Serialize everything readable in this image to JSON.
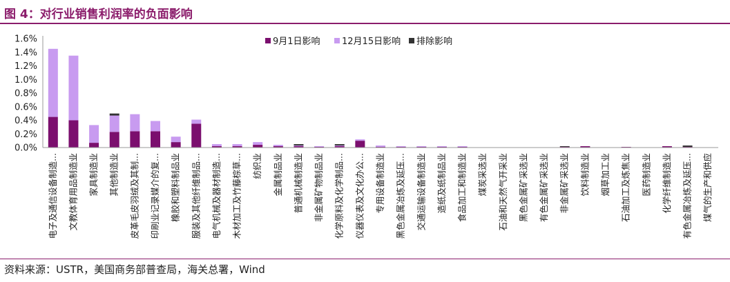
{
  "header": {
    "title": "图 4：对行业销售利润率的负面影响"
  },
  "footer": {
    "source": "资料来源：USTR，美国商务部普查局，海关总署，Wind"
  },
  "chart_data": {
    "type": "bar",
    "stacked": true,
    "title": "",
    "xlabel": "",
    "ylabel": "",
    "ylim": [
      0,
      0.016
    ],
    "yticks": [
      "0.0%",
      "0.2%",
      "0.4%",
      "0.6%",
      "0.8%",
      "1.0%",
      "1.2%",
      "1.4%",
      "1.6%"
    ],
    "legend_position": "top-right",
    "grid": false,
    "categories": [
      "电子及通信设备制造...",
      "文教体育用品制造业",
      "家具制造业",
      "其他制造业",
      "皮革毛皮羽绒及其制...",
      "印刷业记录媒介的复...",
      "橡胶和塑料制品业",
      "服装及其他纤维制品...",
      "电气机械及器材制造...",
      "木材加工及竹藤棕草...",
      "纺织业",
      "金属制品业",
      "普通机械制造业",
      "非金属矿物制品业",
      "化学原料及化学制品...",
      "仪器仪表及文化办公...",
      "专用设备制造业",
      "黑色金属冶炼及延压...",
      "交通运输设备制造业",
      "造纸及纸制品业",
      "食品加工和制造业",
      "煤炭采选业",
      "石油和天然气开采业",
      "黑色金属矿采选业",
      "有色金属矿采选业",
      "非金属矿采选业",
      "饮料制造业",
      "烟草加工业",
      "石油加工及炼焦业",
      "医药制造业",
      "化学纤维制造业",
      "有色金属冶炼及延压...",
      "煤气的生产和供应"
    ],
    "series": [
      {
        "name": "9月1日影响",
        "color": "#7b0f6e",
        "values": [
          0.0045,
          0.004,
          0.0007,
          0.0023,
          0.0024,
          0.0024,
          0.0008,
          0.0035,
          0.0002,
          0.0002,
          0.0004,
          0.0002,
          0.0002,
          0.0001,
          0.0002,
          0.001,
          0.0001,
          0.0001,
          0.0001,
          0.0001,
          0.0001,
          0,
          0,
          0,
          0,
          0.0001,
          0.0002,
          0,
          0.0001,
          0,
          0.0002,
          0.0001,
          0
        ]
      },
      {
        "name": "12月15日影响",
        "color": "#c89bf0",
        "values": [
          0.01,
          0.0095,
          0.0026,
          0.0024,
          0.0025,
          0.0015,
          0.0008,
          0.0006,
          0.0003,
          0.0003,
          0.0004,
          0.0002,
          0.0001,
          0.0001,
          0.0001,
          0.0002,
          0.0002,
          0.0001,
          0.0001,
          0.0001,
          0.0001,
          0,
          0,
          0,
          0,
          0,
          0,
          0,
          0,
          0,
          0,
          0,
          0
        ]
      },
      {
        "name": "排除影响",
        "color": "#333333",
        "values": [
          0,
          0,
          0,
          0.0003,
          0,
          0,
          0,
          0,
          0,
          0,
          0,
          0,
          0.0002,
          0,
          0.0002,
          0,
          0,
          0,
          0,
          0,
          0,
          0,
          0,
          0,
          0,
          0.0001,
          0,
          0,
          0,
          0,
          0,
          0.0002,
          0
        ]
      }
    ]
  }
}
